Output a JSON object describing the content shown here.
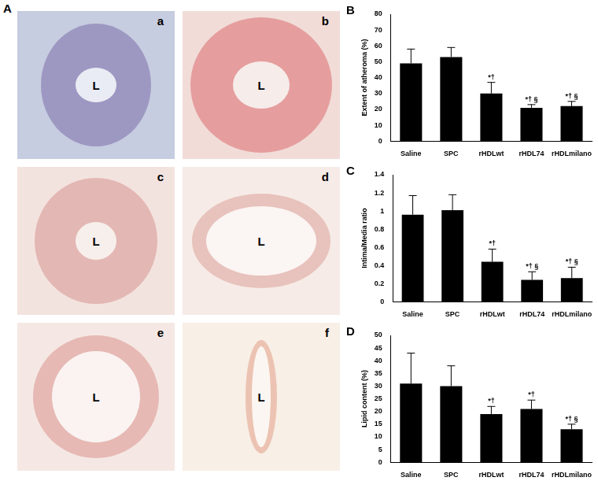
{
  "figure": {
    "panel": "A",
    "images": [
      {
        "label": "a",
        "lumen": "L"
      },
      {
        "label": "b",
        "lumen": "L"
      },
      {
        "label": "c",
        "lumen": "L"
      },
      {
        "label": "d",
        "lumen": "L"
      },
      {
        "label": "e",
        "lumen": "L"
      },
      {
        "label": "f",
        "lumen": "L"
      }
    ]
  },
  "chart_data": [
    {
      "panel": "B",
      "type": "bar",
      "y_label": "Extent of atheroma (%)",
      "categories": [
        "Saline",
        "SPC",
        "rHDLwt",
        "rHDL74",
        "rHDLmilano"
      ],
      "values": [
        49,
        53,
        30,
        21,
        22
      ],
      "errors": [
        9,
        6,
        7,
        2,
        3
      ],
      "annotations": [
        null,
        null,
        "*†",
        "*† §",
        "*† §"
      ],
      "color": "#000000",
      "ylim": [
        0,
        80
      ],
      "yticks": [
        0,
        10,
        20,
        30,
        40,
        50,
        60,
        70,
        80
      ],
      "grid": false
    },
    {
      "panel": "C",
      "type": "bar",
      "y_label": "Intima/Media ratio",
      "categories": [
        "Saline",
        "SPC",
        "rHDLwt",
        "rHDL74",
        "rHDLmilano"
      ],
      "values": [
        0.96,
        1.01,
        0.44,
        0.24,
        0.26
      ],
      "errors": [
        0.21,
        0.17,
        0.14,
        0.09,
        0.12
      ],
      "annotations": [
        null,
        null,
        "*†",
        "*† §",
        "*† §"
      ],
      "color": "#000000",
      "ylim": [
        0,
        1.4
      ],
      "yticks": [
        0,
        0.2,
        0.4,
        0.6,
        0.8,
        1,
        1.2,
        1.4
      ],
      "grid": false
    },
    {
      "panel": "D",
      "type": "bar",
      "y_label": "Lipid content (%)",
      "categories": [
        "Saline",
        "SPC",
        "rHDLwt",
        "rHDL74",
        "rHDLmilano"
      ],
      "values": [
        31,
        30,
        19,
        21,
        13
      ],
      "errors": [
        12,
        8,
        3,
        3.5,
        2
      ],
      "annotations": [
        null,
        null,
        "*†",
        "*†",
        "*† §"
      ],
      "color": "#000000",
      "ylim": [
        0,
        50
      ],
      "yticks": [
        0,
        5,
        10,
        15,
        20,
        25,
        30,
        35,
        40,
        45,
        50
      ],
      "grid": false
    }
  ]
}
